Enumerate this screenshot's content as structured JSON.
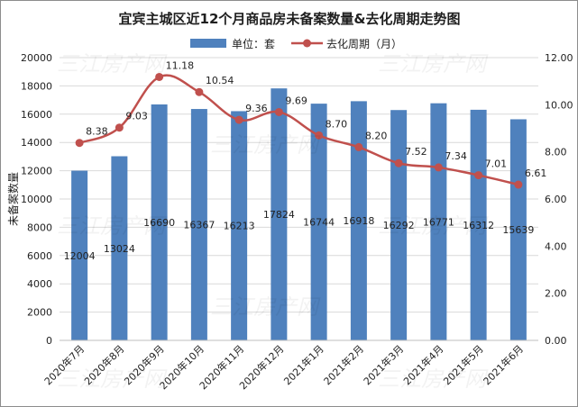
{
  "chart_data": {
    "type": "bar",
    "title": "宜宾主城区近12个月商品房未备案数量&去化周期走势图",
    "ylabel": "未备案数量",
    "y2label": "",
    "categories": [
      "2020年7月",
      "2020年8月",
      "2020年9月",
      "2020年10月",
      "2020年11月",
      "2020年12月",
      "2021年1月",
      "2021年2月",
      "2021年3月",
      "2021年4月",
      "2021年5月",
      "2021年6月"
    ],
    "series": [
      {
        "name": "单位：套",
        "kind": "bar",
        "axis": "left",
        "color": "#4f81bd",
        "values": [
          12004,
          13024,
          16690,
          16367,
          16213,
          17824,
          16744,
          16918,
          16292,
          16771,
          16312,
          15639
        ]
      },
      {
        "name": "去化周期（月）",
        "kind": "line",
        "axis": "right",
        "color": "#c0504d",
        "values": [
          8.38,
          9.03,
          11.18,
          10.54,
          9.36,
          9.69,
          8.7,
          8.2,
          7.52,
          7.34,
          7.01,
          6.61
        ]
      }
    ],
    "ylim": [
      0,
      20000
    ],
    "y2lim": [
      0,
      12
    ],
    "yticks": [
      "0",
      "2000",
      "4000",
      "6000",
      "8000",
      "10000",
      "12000",
      "14000",
      "16000",
      "18000",
      "20000"
    ],
    "y2ticks": [
      "0.00",
      "2.00",
      "4.00",
      "6.00",
      "8.00",
      "10.00",
      "12.00"
    ],
    "legend_position": "top",
    "grid": true,
    "watermark": "三江房产网"
  }
}
